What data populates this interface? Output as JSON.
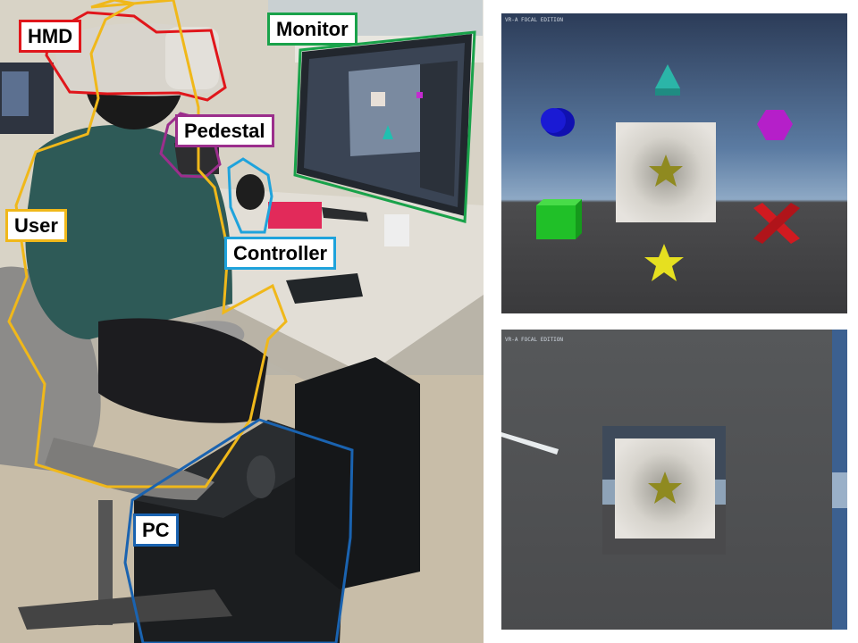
{
  "photo": {
    "labels": {
      "hmd": "HMD",
      "monitor": "Monitor",
      "pedestal": "Pedestal",
      "user": "User",
      "controller": "Controller",
      "pc": "PC"
    },
    "colors": {
      "hmd": "#e0161b",
      "monitor": "#19a24a",
      "pedestal": "#9b2e8c",
      "user": "#f0b81a",
      "controller": "#1fa3dc",
      "pc": "#1a63b0"
    }
  },
  "vr_views": {
    "hud_text": "VR-A FOCAL EDITION",
    "top_view_shapes": [
      "cylinder",
      "triangle",
      "hexagon",
      "cube",
      "star",
      "cross",
      "star-center"
    ],
    "shape_colors": {
      "cylinder": "#1515c8",
      "triangle": "#2bb5a8",
      "hexagon": "#b51fc9",
      "cube": "#20c028",
      "star": "#e6e020",
      "cross": "#d01a20",
      "star_center": "#8f8a20"
    }
  }
}
